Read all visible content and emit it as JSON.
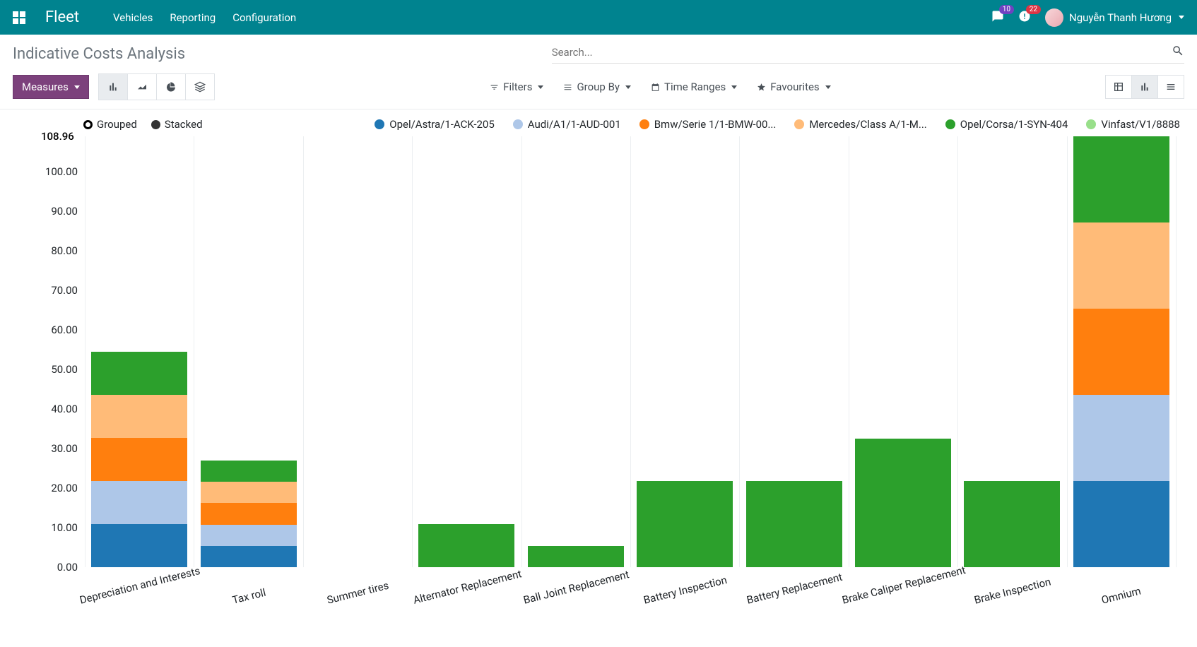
{
  "nav": {
    "brand": "Fleet",
    "menu": [
      "Vehicles",
      "Reporting",
      "Configuration"
    ],
    "messages_count": "10",
    "activities_count": "22",
    "user_name": "Nguyễn Thanh Hương"
  },
  "breadcrumb": "Indicative Costs Analysis",
  "search": {
    "placeholder": "Search..."
  },
  "measures_label": "Measures",
  "filters": {
    "filters_label": "Filters",
    "groupby_label": "Group By",
    "timeranges_label": "Time Ranges",
    "favourites_label": "Favourites"
  },
  "chart": {
    "mode_labels": {
      "grouped": "Grouped",
      "stacked": "Stacked"
    },
    "series": [
      {
        "label": "Opel/Astra/1-ACK-205",
        "color": "#1f77b4"
      },
      {
        "label": "Audi/A1/1-AUD-001",
        "color": "#aec7e8"
      },
      {
        "label": "Bmw/Serie 1/1-BMW-00...",
        "color": "#ff7f0e"
      },
      {
        "label": "Mercedes/Class A/1-M...",
        "color": "#ffbb78"
      },
      {
        "label": "Opel/Corsa/1-SYN-404",
        "color": "#2ca02c"
      },
      {
        "label": "Vinfast/V1/8888",
        "color": "#98df8a"
      }
    ],
    "y_top_label": "108.96",
    "y_max": 108.96,
    "y_ticks": [
      0,
      10,
      20,
      30,
      40,
      50,
      60,
      70,
      80,
      90,
      100
    ],
    "categories": [
      "Depreciation and Interests",
      "Tax roll",
      "Summer tires",
      "Alternator Replacement",
      "Ball Joint Replacement",
      "Battery Inspection",
      "Battery Replacement",
      "Brake Caliper Replacement",
      "Brake Inspection",
      "Omnium"
    ],
    "stacks": [
      [
        10.9,
        10.9,
        10.9,
        10.9,
        10.9,
        0
      ],
      [
        5.4,
        5.4,
        5.4,
        5.4,
        5.4,
        0
      ],
      [
        0,
        0,
        0,
        0,
        0,
        0
      ],
      [
        0,
        0,
        0,
        0,
        10.9,
        0
      ],
      [
        0,
        0,
        0,
        0,
        5.4,
        0
      ],
      [
        0,
        0,
        0,
        0,
        21.8,
        0
      ],
      [
        0,
        0,
        0,
        0,
        21.8,
        0
      ],
      [
        0,
        0,
        0,
        0,
        32.6,
        0
      ],
      [
        0,
        0,
        0,
        0,
        21.8,
        0
      ],
      [
        21.8,
        21.8,
        21.8,
        21.8,
        21.8,
        0
      ]
    ],
    "bar_width_ratio": 0.88,
    "grid_color": "#eceff1",
    "series_colors": [
      "#1f77b4",
      "#aec7e8",
      "#ff7f0e",
      "#ffbb78",
      "#2ca02c",
      "#98df8a"
    ]
  }
}
